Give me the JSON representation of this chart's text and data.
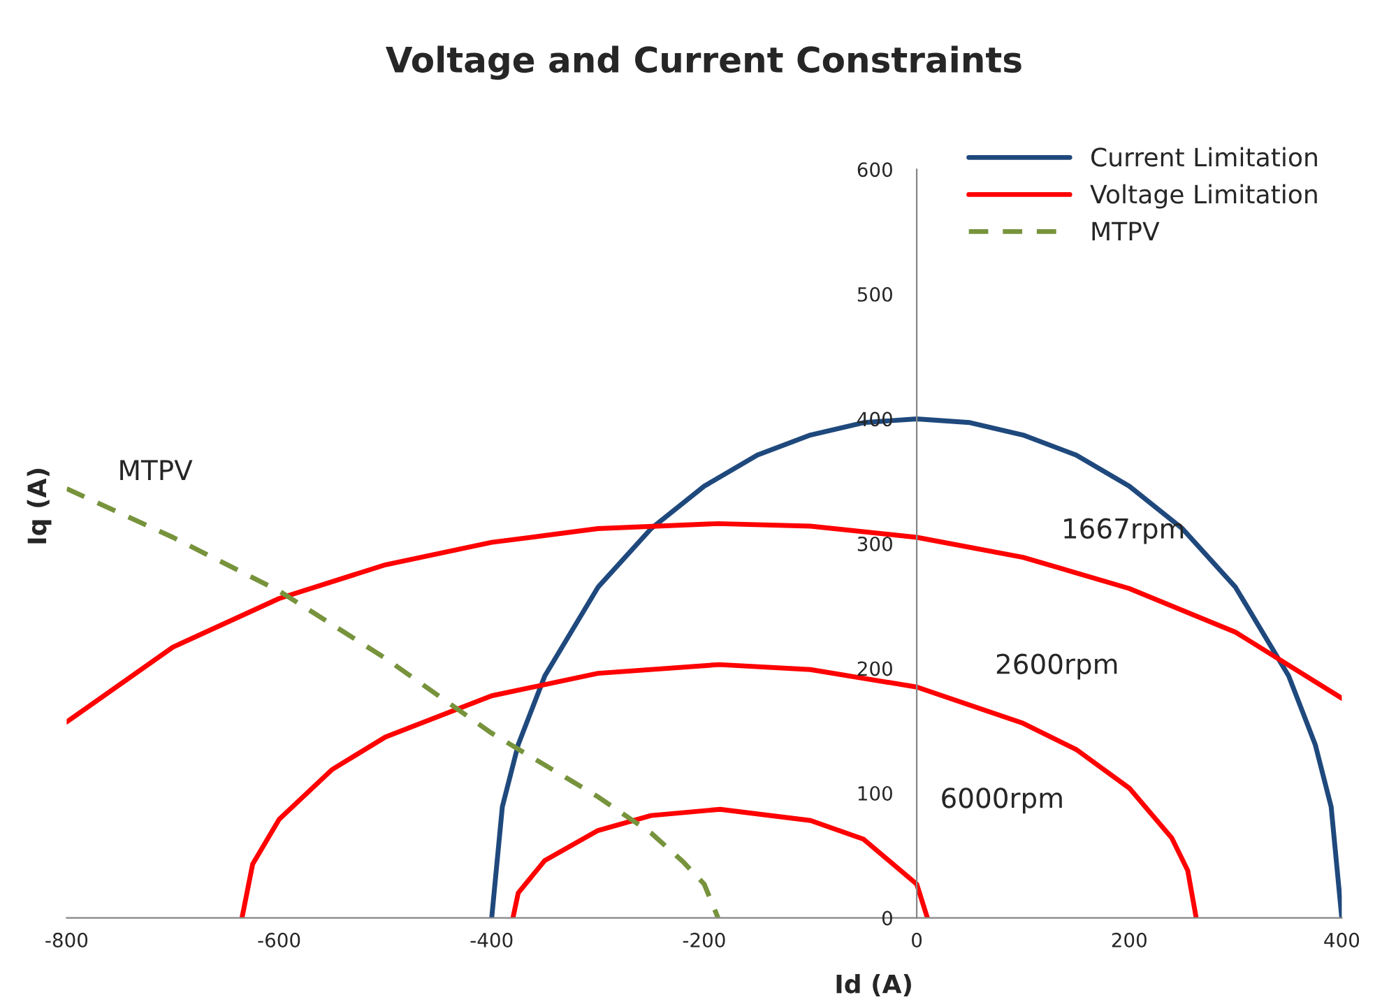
{
  "chart_data": {
    "type": "line",
    "title": "Voltage and Current Constraints",
    "xlabel": "Id (A)",
    "ylabel": "Iq (A)",
    "xlim": [
      -800,
      400
    ],
    "ylim": [
      0,
      600
    ],
    "xticks": [
      -800,
      -600,
      -400,
      -200,
      0,
      200,
      400
    ],
    "yticks": [
      0,
      100,
      200,
      300,
      400,
      500,
      600
    ],
    "grid": false,
    "legend": "top right",
    "marker": "none",
    "series": [
      {
        "name": "Current Limitation",
        "color": "#1f497d",
        "line_style": "solid",
        "x": [
          -400,
          -390,
          -375,
          -350,
          -300,
          -250,
          -200,
          -150,
          -100,
          -50,
          0,
          50,
          100,
          150,
          200,
          250,
          300,
          350,
          375,
          390,
          400
        ],
        "values": [
          0,
          89,
          139,
          194,
          265,
          312,
          346,
          371,
          387,
          397,
          400,
          397,
          387,
          371,
          346,
          312,
          265,
          194,
          139,
          89,
          0
        ]
      },
      {
        "name": "Voltage Limitation",
        "color": "#ff0000",
        "line_style": "solid",
        "x": [
          -800,
          -700,
          -600,
          -500,
          -400,
          -300,
          -187,
          -100,
          0,
          100,
          200,
          300,
          400
        ],
        "values": [
          157,
          217,
          256,
          283,
          301,
          312,
          316,
          314,
          305,
          289,
          264,
          229,
          176
        ]
      },
      {
        "color": "#ff0000",
        "line_style": "solid",
        "x": [
          -635,
          -625,
          -600,
          -550,
          -500,
          -400,
          -300,
          -186,
          -100,
          0,
          100,
          150,
          200,
          240,
          255,
          263
        ],
        "values": [
          0,
          43,
          79,
          119,
          145,
          178,
          196,
          203,
          199,
          185,
          156,
          135,
          104,
          64,
          38,
          0
        ]
      },
      {
        "color": "#ff0000",
        "line_style": "solid",
        "x": [
          -380,
          -375,
          -350,
          -300,
          -250,
          -185,
          -100,
          -50,
          0,
          10
        ],
        "values": [
          0,
          20,
          46,
          70,
          82,
          87,
          78,
          63,
          27,
          0
        ]
      },
      {
        "name": "MTPV",
        "color": "#77933c",
        "line_style": "dashed",
        "x": [
          -800,
          -700,
          -600,
          -500,
          -400,
          -300,
          -250,
          -220,
          -200,
          -187
        ],
        "values": [
          344,
          305,
          262,
          208,
          148,
          97,
          68,
          45,
          27,
          0
        ]
      }
    ],
    "annotations": [
      "MTPV",
      "1667rpm",
      "2600rpm",
      "6000rpm"
    ]
  }
}
